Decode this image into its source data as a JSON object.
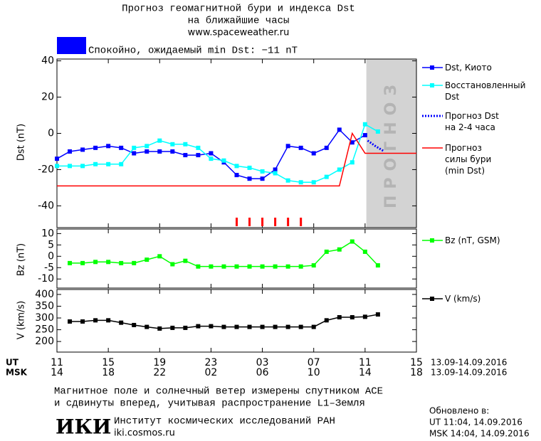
{
  "header": {
    "title_lines": [
      "Прогноз геомагнитной бури и индекса Dst",
      "на ближайшие часы"
    ],
    "url": "www.spaceweather.ru"
  },
  "status": {
    "color": "#0000ff",
    "text": "Спокойно, ожидаемый min Dst: −11 nT"
  },
  "x_axis": {
    "xlim": [
      0,
      28
    ],
    "ut_label": "UT",
    "msk_label": "MSK",
    "ut_ticks": [
      {
        "value": 0,
        "label": "11"
      },
      {
        "value": 4,
        "label": "15"
      },
      {
        "value": 8,
        "label": "19"
      },
      {
        "value": 12,
        "label": "23"
      },
      {
        "value": 16,
        "label": "03"
      },
      {
        "value": 20,
        "label": "07"
      },
      {
        "value": 24,
        "label": "11"
      },
      {
        "value": 28,
        "label": "15"
      }
    ],
    "msk_ticks": [
      {
        "value": 0,
        "label": "14"
      },
      {
        "value": 4,
        "label": "18"
      },
      {
        "value": 8,
        "label": "22"
      },
      {
        "value": 12,
        "label": "02"
      },
      {
        "value": 16,
        "label": "06"
      },
      {
        "value": 20,
        "label": "10"
      },
      {
        "value": 24,
        "label": "14"
      },
      {
        "value": 28,
        "label": "18"
      }
    ],
    "ut_dates": "13.09-14.09.2016",
    "msk_dates": "13.09-14.09.2016"
  },
  "chart_data": [
    {
      "type": "line",
      "ylabel": "Dst (nT)",
      "xlim": [
        0,
        28
      ],
      "ylim": [
        -52,
        41
      ],
      "yticks": [
        40,
        20,
        0,
        -20,
        -40
      ],
      "forecast_zone": {
        "x": [
          24.1,
          28
        ],
        "label": "ПРОГНОЗ",
        "color": "#d3d3d3"
      },
      "markers": {
        "x": [
          14,
          15,
          16,
          17,
          18,
          19
        ],
        "color": "#ff0000"
      },
      "series": [
        {
          "name": "Dst, Киото",
          "color": "#0000ff",
          "x": [
            0,
            1,
            2,
            3,
            4,
            5,
            6,
            7,
            8,
            9,
            10,
            11,
            12,
            13,
            14,
            15,
            16,
            17,
            18,
            19,
            20,
            21,
            22,
            23,
            24
          ],
          "values": [
            -14,
            -10,
            -9,
            -8,
            -7,
            -8,
            -11,
            -10,
            -10,
            -10,
            -12,
            -12,
            -11,
            -16,
            -23,
            -25,
            -25,
            -20,
            -7,
            -8,
            -11,
            -8,
            2,
            -5,
            -1
          ]
        },
        {
          "name": "Восстановленный\nDst",
          "color": "#00ffff",
          "x": [
            0,
            1,
            2,
            3,
            4,
            5,
            6,
            7,
            8,
            9,
            10,
            11,
            12,
            13,
            14,
            15,
            16,
            17,
            18,
            19,
            20,
            21,
            22,
            23,
            24,
            25
          ],
          "values": [
            -18,
            -18,
            -18,
            -17,
            -17,
            -17,
            -8,
            -7,
            -4,
            -6,
            -6,
            -8,
            -14,
            -15,
            -18,
            -19,
            -21,
            -22,
            -26,
            -27,
            -27,
            -24,
            -20,
            -16,
            5,
            1
          ]
        },
        {
          "name": "Прогноз Dst\nна 2-4 часа",
          "color": "#0000ff",
          "dash": true,
          "x": [
            24.2,
            24.8,
            25.5
          ],
          "values": [
            -4,
            -7,
            -10
          ]
        },
        {
          "name": "Прогноз\nсилы бури\n(min Dst)",
          "color": "#ff0000",
          "plain": true,
          "x": [
            0,
            22,
            23,
            24,
            28
          ],
          "values": [
            -29,
            -29,
            0,
            -11,
            -11
          ]
        }
      ]
    },
    {
      "type": "line",
      "ylabel": "Bz (nT)",
      "xlim": [
        0,
        28
      ],
      "ylim": [
        -14,
        12
      ],
      "yticks": [
        10,
        5,
        0,
        -5,
        -10
      ],
      "series": [
        {
          "name": "Bz (nT, GSM)",
          "color": "#00ff00",
          "x": [
            1,
            2,
            3,
            4,
            5,
            6,
            7,
            8,
            9,
            10,
            11,
            12,
            13,
            14,
            15,
            16,
            17,
            18,
            19,
            20,
            21,
            22,
            23,
            24,
            25
          ],
          "values": [
            -3,
            -3,
            -2.5,
            -2.5,
            -3,
            -3,
            -1.5,
            0,
            -3.5,
            -2,
            -4.5,
            -4.5,
            -4.5,
            -4.5,
            -4.5,
            -4.5,
            -4.5,
            -4.5,
            -4.5,
            -4,
            2,
            3,
            6.5,
            2,
            -4
          ]
        }
      ]
    },
    {
      "type": "line",
      "ylabel": "V (km/s)",
      "xlim": [
        0,
        28
      ],
      "ylim": [
        155,
        421
      ],
      "yticks": [
        400,
        350,
        300,
        250,
        200
      ],
      "series": [
        {
          "name": "V (km/s)",
          "color": "#000000",
          "x": [
            1,
            2,
            3,
            4,
            5,
            6,
            7,
            8,
            9,
            10,
            11,
            12,
            13,
            14,
            15,
            16,
            17,
            18,
            19,
            20,
            21,
            22,
            23,
            24,
            25
          ],
          "values": [
            285,
            285,
            290,
            290,
            280,
            270,
            262,
            255,
            258,
            258,
            265,
            265,
            262,
            262,
            262,
            262,
            262,
            262,
            262,
            262,
            290,
            303,
            303,
            305,
            315
          ]
        }
      ]
    }
  ],
  "footer": {
    "note_lines": [
      "Магнитное поле и солнечный ветер измерены спутником ACE",
      "и сдвинуты вперед, учитывая распространение L1–Земля"
    ],
    "logo": "ИКИ",
    "institute": "Институт космических исследований РАН",
    "site": "iki.cosmos.ru",
    "updated_label": "Обновлено в:",
    "updated_ut": "UT  11:04, 14.09.2016",
    "updated_msk": "MSK 14:04, 14.09.2016"
  }
}
